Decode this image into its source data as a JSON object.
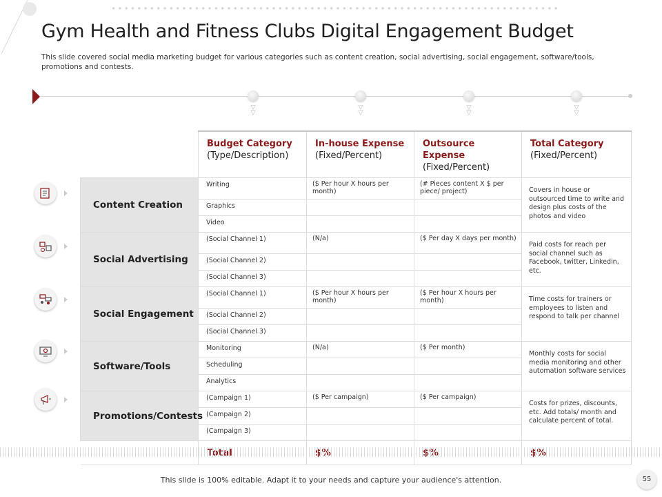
{
  "title": "Gym Health and Fitness Clubs Digital Engagement Budget",
  "subtitle": "This slide covered social media marketing budget for various categories such as content creation, social advertising, social engagement, software/tools, promotions and contests.",
  "footer": "This slide is 100% editable. Adapt it to your needs and capture your audience's attention.",
  "page_number": "55",
  "table": {
    "headers": [
      {
        "title": "Budget Category",
        "sub": "(Type/Description)"
      },
      {
        "title": "In-house Expense",
        "sub": "(Fixed/Percent)"
      },
      {
        "title": "Outsource Expense",
        "sub": "(Fixed/Percent)"
      },
      {
        "title": "Total Category",
        "sub": "(Fixed/Percent)"
      }
    ],
    "groups": [
      {
        "category": "Content Creation",
        "icon": "content-creation-icon",
        "items": [
          "Writing",
          "Graphics",
          "Video"
        ],
        "inhouse": "($ Per hour X hours per month)",
        "outsource": "(# Pieces content X $ per piece/ project)",
        "description": "Covers in house or outsourced time to write and design plus costs of the photos and video"
      },
      {
        "category": "Social Advertising",
        "icon": "social-advertising-icon",
        "items": [
          "(Social Channel 1)",
          "(Social Channel 2)",
          "(Social Channel 3)"
        ],
        "inhouse": "(N/a)",
        "outsource": "($ Per day X days per month)",
        "description": "Paid costs for reach per social channel such as Facebook, twitter, Linkedin, etc."
      },
      {
        "category": "Social Engagement",
        "icon": "social-engagement-icon",
        "items": [
          "(Social Channel 1)",
          "(Social Channel 2)",
          "(Social Channel 3)"
        ],
        "inhouse": "($ Per hour X hours per month)",
        "outsource": "($ Per hour X hours per month)",
        "description": "Time costs for trainers or employees to listen and respond to talk per channel"
      },
      {
        "category": "Software/Tools",
        "icon": "software-tools-icon",
        "items": [
          "Monitoring",
          "Scheduling",
          "Analytics"
        ],
        "inhouse": "(N/a)",
        "outsource": "($ Per month)",
        "description": "Monthly costs for social media monitoring and other automation software services"
      },
      {
        "category": "Promotions/Contests",
        "icon": "promotions-contests-icon",
        "items": [
          "(Campaign 1)",
          "(Campaign 2)",
          "(Campaign 3)"
        ],
        "inhouse": "($ Per campaign)",
        "outsource": "($ Per campaign)",
        "description": "Costs for prizes, discounts, etc. Add totals/ month and calculate percent of total."
      }
    ],
    "total": {
      "label": "Total",
      "inhouse": "$%",
      "outsource": "$%",
      "category": "$%"
    }
  },
  "colors": {
    "accent": "#8b1a1a",
    "category_bg": "#e4e4e4",
    "grid": "#dddddd"
  }
}
